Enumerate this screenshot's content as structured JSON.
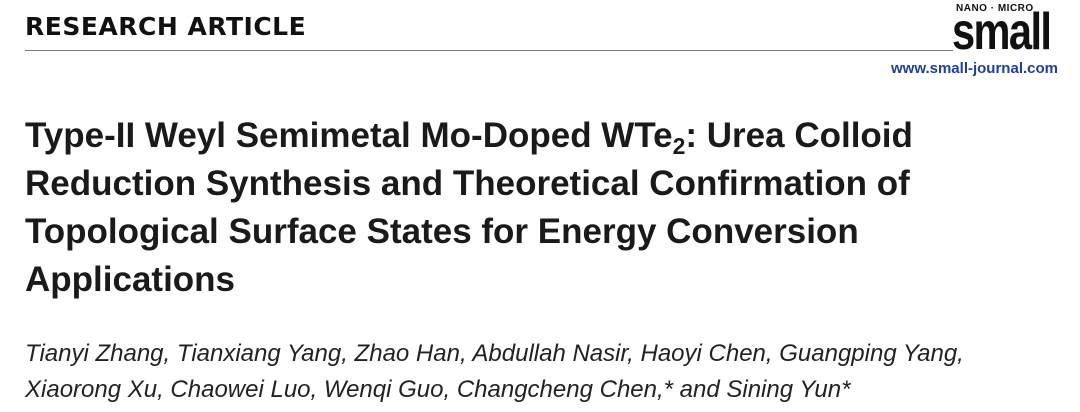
{
  "header": {
    "section": "RESEARCH ARTICLE",
    "journal_small_caps": "NANO · MICRO",
    "journal_name": "small",
    "url": "www.small-journal.com"
  },
  "article": {
    "title_parts": [
      "Type-II Weyl Semimetal Mo-Doped WTe",
      "2",
      ": Urea Colloid Reduction Synthesis and Theoretical Confirmation of Topological Surface States for Energy Conversion Applications"
    ],
    "authors": "Tianyi Zhang, Tianxiang Yang, Zhao Han, Abdullah Nasir, Haoyi Chen, Guangping Yang, Xiaorong Xu, Chaowei Luo, Wenqi Guo, Changcheng Chen,* and Sining Yun*"
  }
}
